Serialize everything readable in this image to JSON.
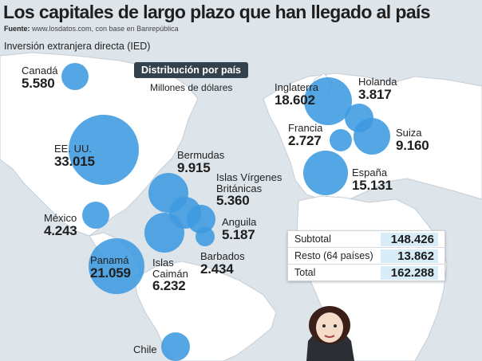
{
  "header": {
    "title": "Los capitales de largo plazo que han llegado al país",
    "source_label": "Fuente:",
    "source_text": "www.losdatos.com, con base en Banrepública",
    "subtitle": "Inversión extranjera directa (IED)",
    "badge": "Distribución por país",
    "units": "Millones de dólares"
  },
  "countries": [
    {
      "name": "Canadá",
      "value": "5.580"
    },
    {
      "name": "EE. UU.",
      "value": "33.015"
    },
    {
      "name": "Bermudas",
      "value": "9.915"
    },
    {
      "name_lines": [
        "Islas Vírgenes",
        "Británicas"
      ],
      "value": "5.360"
    },
    {
      "name": "Anguila",
      "value": "5.187"
    },
    {
      "name": "México",
      "value": "4.243"
    },
    {
      "name": "Panamá",
      "value": "21.059"
    },
    {
      "name_lines": [
        "Islas",
        "Caimán"
      ],
      "value": "6.232"
    },
    {
      "name": "Barbados",
      "value": "2.434"
    },
    {
      "name": "Chile",
      "value": ""
    },
    {
      "name": "Inglaterra",
      "value": "18.602"
    },
    {
      "name": "Holanda",
      "value": "3.817"
    },
    {
      "name": "Francia",
      "value": "2.727"
    },
    {
      "name": "Suiza",
      "value": "9.160"
    },
    {
      "name": "España",
      "value": "15.131"
    }
  ],
  "summary": {
    "rows": [
      {
        "label": "Subtotal",
        "value": "148.426"
      },
      {
        "label": "Resto (64 países)",
        "value": "13.862"
      },
      {
        "label": "Total",
        "value": "162.288"
      }
    ]
  },
  "colors": {
    "ocean": "#dde4ea",
    "land": "#ffffff",
    "bubble": "#3d9ae0",
    "badge": "#33414d",
    "highlight": "#d8ecf8"
  }
}
